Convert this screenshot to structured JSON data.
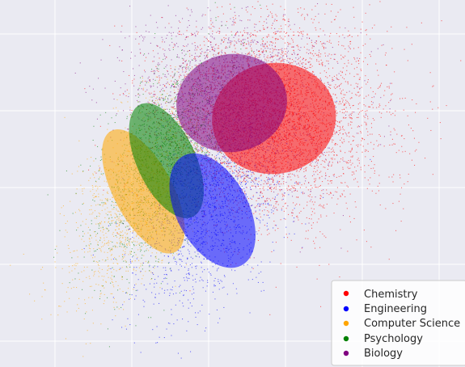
{
  "chart_data": {
    "type": "scatter",
    "title": "",
    "xlabel": "",
    "ylabel": "",
    "grid": true,
    "background": "#eaeaf2",
    "gridColor": "#ffffff",
    "legend_position": "bottom-right",
    "series": [
      {
        "name": "Chemistry",
        "color": "#ff0000",
        "center": [
          0.85,
          0.9
        ],
        "spread": [
          0.95,
          0.85
        ],
        "angle": -8,
        "points": 4200
      },
      {
        "name": "Engineering",
        "color": "#0000ff",
        "center": [
          0.05,
          -0.3
        ],
        "spread": [
          0.55,
          0.95
        ],
        "angle": -28,
        "points": 1500
      },
      {
        "name": "Computer Science",
        "color": "#ffa500",
        "center": [
          -0.85,
          -0.05
        ],
        "spread": [
          0.45,
          1.05
        ],
        "angle": -28,
        "points": 1700
      },
      {
        "name": "Psychology",
        "color": "#008000",
        "center": [
          -0.55,
          0.35
        ],
        "spread": [
          0.45,
          0.95
        ],
        "angle": -25,
        "points": 1600
      },
      {
        "name": "Biology",
        "color": "#800080",
        "center": [
          0.3,
          1.1
        ],
        "spread": [
          0.85,
          0.75
        ],
        "angle": -10,
        "points": 2400
      }
    ]
  }
}
